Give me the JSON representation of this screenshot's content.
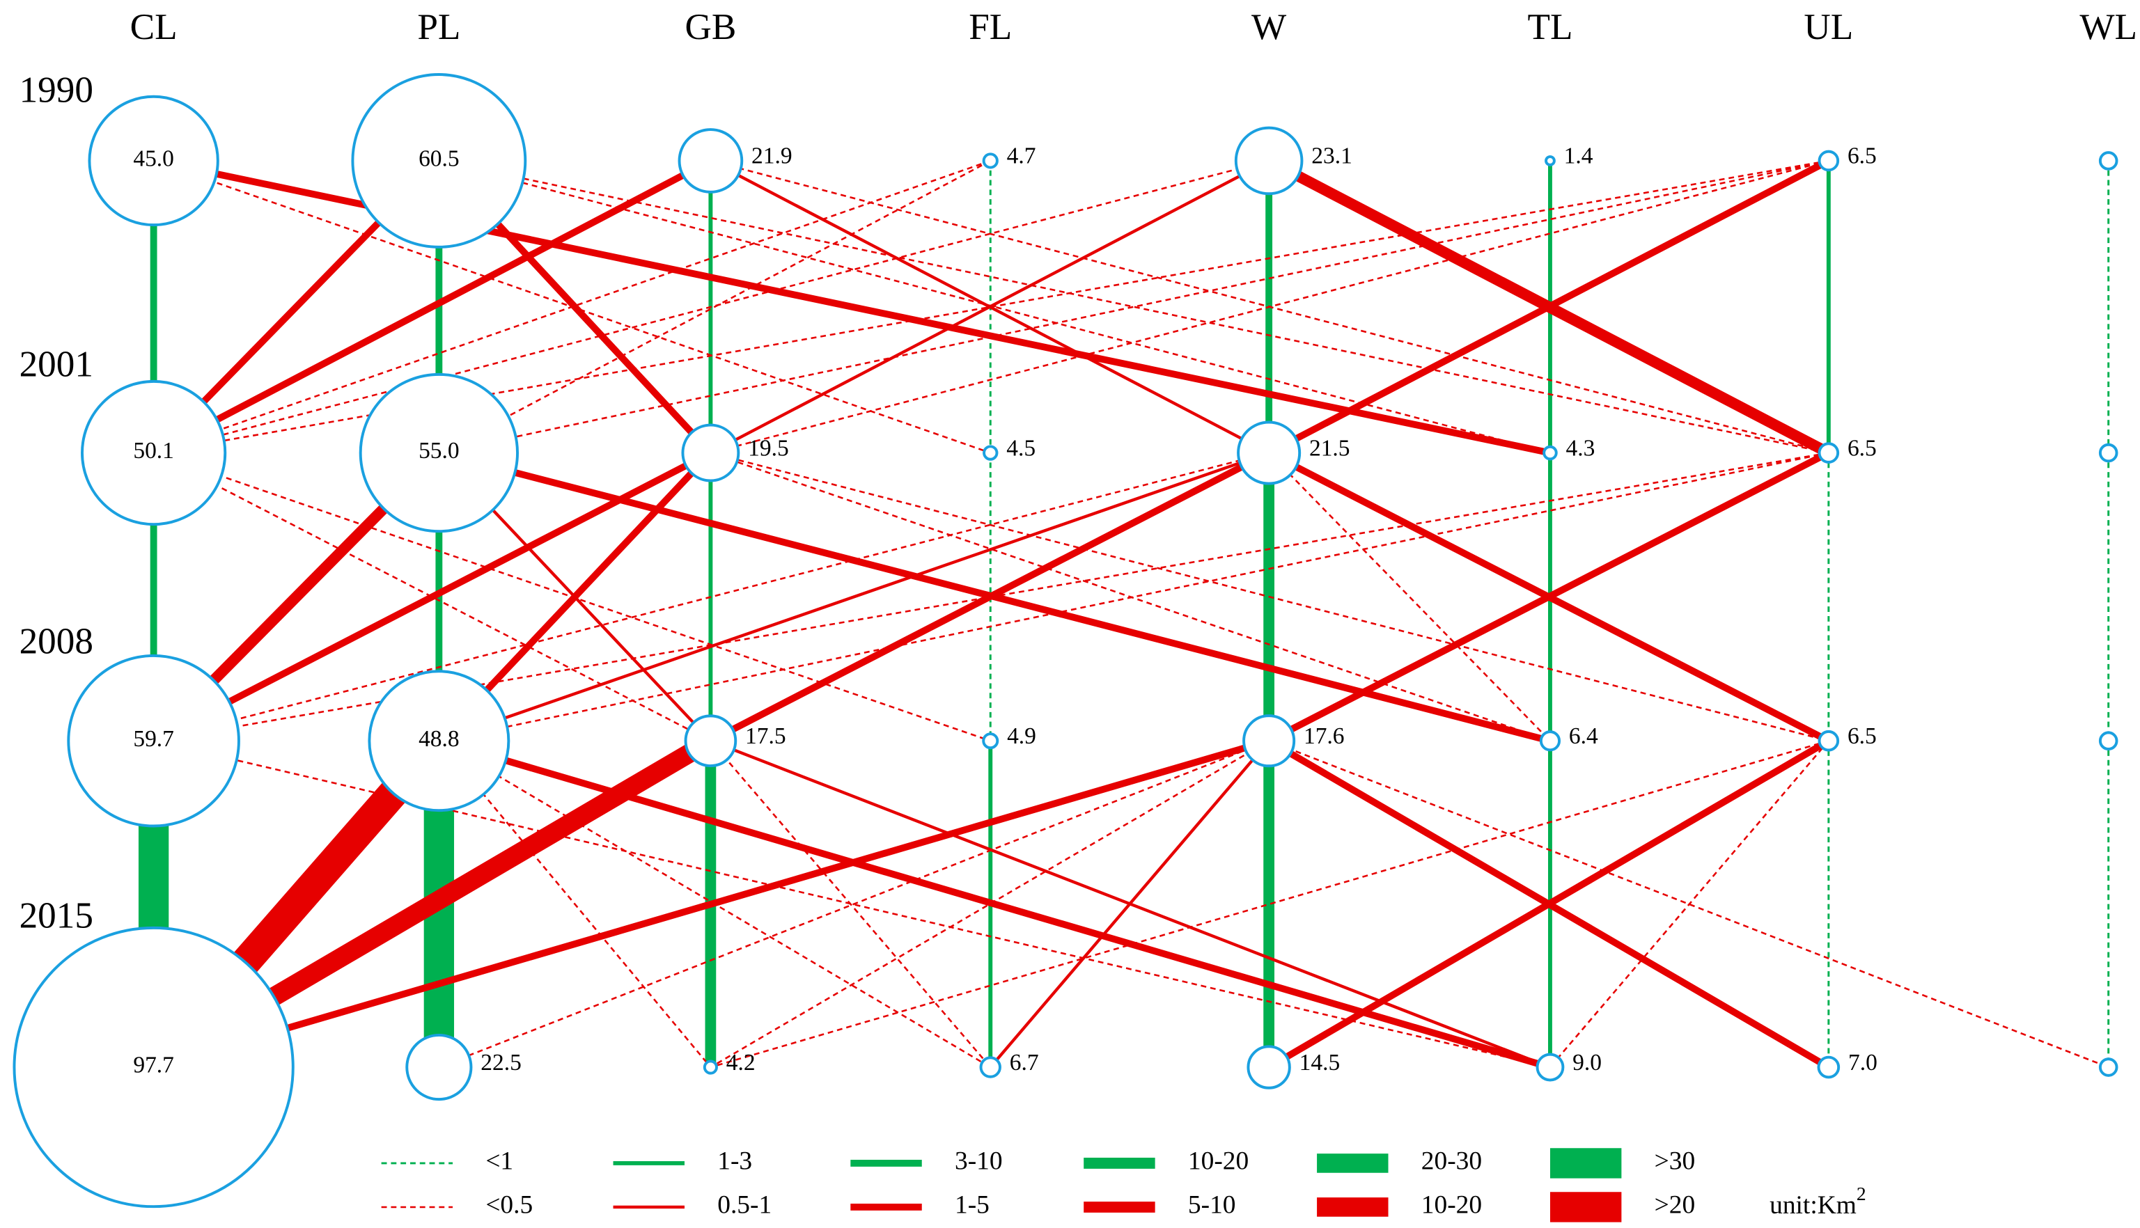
{
  "columns": [
    "CL",
    "PL",
    "GB",
    "FL",
    "W",
    "TL",
    "UL",
    "WL"
  ],
  "years": [
    "1990",
    "2001",
    "2008",
    "2015"
  ],
  "nodes": [
    [
      "45.0",
      "60.5",
      "21.9",
      "4.7",
      "23.1",
      "1.4",
      "6.5",
      null
    ],
    [
      "50.1",
      "55.0",
      "19.5",
      "4.5",
      "21.5",
      "4.3",
      "6.5",
      null
    ],
    [
      "59.7",
      "48.8",
      "17.5",
      "4.9",
      "17.6",
      "6.4",
      "6.5",
      null
    ],
    [
      "97.7",
      "22.5",
      "4.2",
      "6.7",
      "14.5",
      "9.0",
      "7.0",
      null
    ]
  ],
  "legend": {
    "green": [
      "<1",
      "1-3",
      "3-10",
      "10-20",
      "20-30",
      ">30"
    ],
    "red": [
      "<0.5",
      "0.5-1",
      "1-5",
      "5-10",
      "10-20",
      ">20"
    ],
    "unit": "unit:Km",
    "unit_sup": "2"
  }
}
